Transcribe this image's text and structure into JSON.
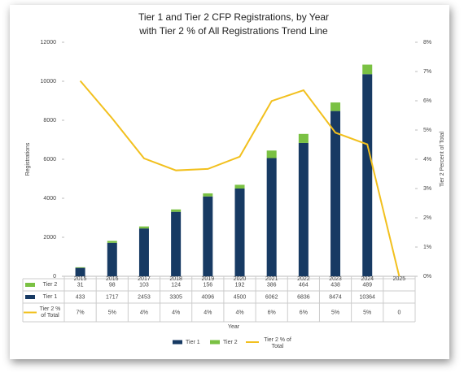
{
  "chart_data": {
    "type": "bar-line",
    "title": "Tier 1 and Tier 2 CFP Registrations, by Year",
    "subtitle": "with Tier 2 % of All Registrations Trend Line",
    "x_label": "Year",
    "y_label": "Registrations",
    "y2_label": "Tier 2 Percent of Total",
    "categories": [
      "2015",
      "2016",
      "2017",
      "2018",
      "2019",
      "2020",
      "2021",
      "2022",
      "2023",
      "2024",
      "2025"
    ],
    "series": [
      {
        "name": "Tier 2",
        "type": "bar",
        "color": "#7ac143",
        "values": [
          31,
          98,
          103,
          124,
          156,
          192,
          386,
          464,
          438,
          489,
          null
        ]
      },
      {
        "name": "Tier 1",
        "type": "bar",
        "color": "#173a63",
        "values": [
          433,
          1717,
          2453,
          3305,
          4096,
          4500,
          6062,
          6836,
          8474,
          10364,
          null
        ]
      },
      {
        "name": "Tier 2 % of Total",
        "type": "line",
        "axis": "y2",
        "color": "#f2c01e",
        "values": [
          6.68,
          5.4,
          4.03,
          3.62,
          3.67,
          4.09,
          5.99,
          6.36,
          4.91,
          4.51,
          0
        ],
        "value_labels": [
          "7%",
          "5%",
          "4%",
          "4%",
          "4%",
          "4%",
          "6%",
          "6%",
          "5%",
          "5%",
          "0"
        ]
      }
    ],
    "legend_order": [
      1,
      0,
      2
    ],
    "ylim": [
      0,
      12000
    ],
    "yticks": [
      0,
      2000,
      4000,
      6000,
      8000,
      10000,
      12000
    ],
    "y2lim": [
      0,
      8
    ],
    "y2ticks": [
      {
        "value": 0,
        "label": "0%"
      },
      {
        "value": 1,
        "label": "1%"
      },
      {
        "value": 2,
        "label": "2%"
      },
      {
        "value": 3,
        "label": "3%"
      },
      {
        "value": 4,
        "label": "4%"
      },
      {
        "value": 5,
        "label": "5%"
      },
      {
        "value": 6,
        "label": "6%"
      },
      {
        "value": 7,
        "label": "7%"
      },
      {
        "value": 8,
        "label": "8%"
      }
    ],
    "grid": false,
    "legend": "bottom"
  }
}
